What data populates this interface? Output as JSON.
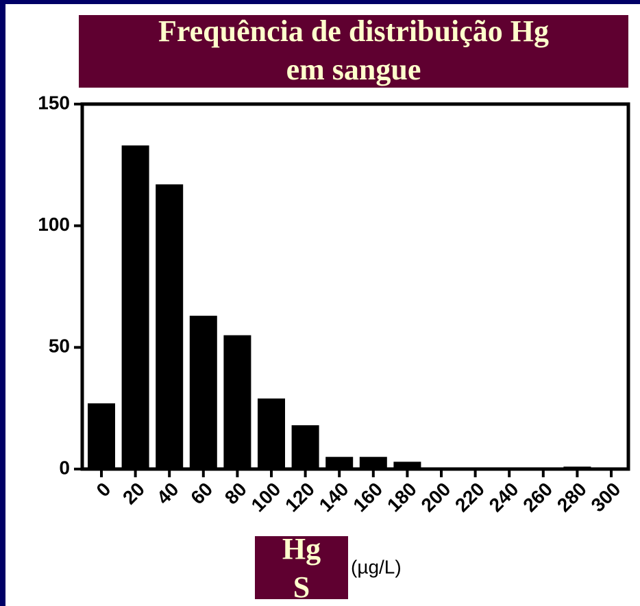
{
  "chart_data": {
    "type": "bar",
    "title": [
      "Frequência de distribuição Hg",
      "em sangue"
    ],
    "categories": [
      "0",
      "20",
      "40",
      "60",
      "80",
      "100",
      "120",
      "140",
      "160",
      "180",
      "200",
      "220",
      "240",
      "260",
      "280",
      "300"
    ],
    "values": [
      27,
      133,
      117,
      63,
      55,
      29,
      18,
      5,
      5,
      3,
      0,
      0,
      0,
      0,
      1,
      0
    ],
    "color": "#000000",
    "ylim": [
      0,
      150
    ],
    "yticks": [
      0,
      50,
      100,
      150
    ],
    "xlabel": {
      "box": [
        "Hg",
        "S"
      ],
      "unit": "(µg/L)"
    },
    "grid": false
  }
}
